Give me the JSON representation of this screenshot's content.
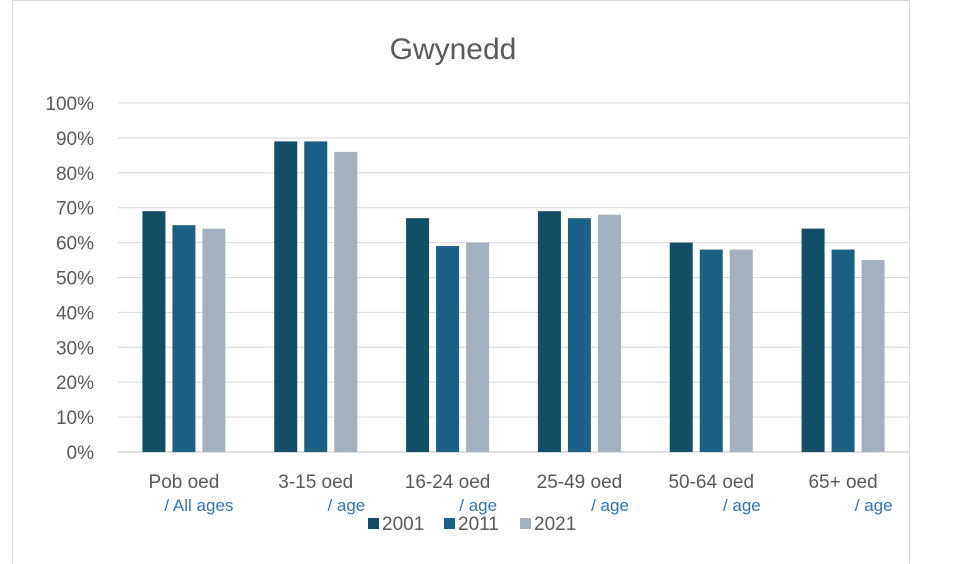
{
  "chart_data": {
    "type": "bar",
    "title": "Gwynedd",
    "xlabel": "",
    "ylabel": "",
    "ylim": [
      0,
      100
    ],
    "y_ticks": [
      "0%",
      "10%",
      "20%",
      "30%",
      "40%",
      "50%",
      "60%",
      "70%",
      "80%",
      "90%",
      "100%"
    ],
    "categories": [
      {
        "main": "Pob oed",
        "sub": "/ All ages"
      },
      {
        "main": "3-15 oed",
        "sub": "/ age"
      },
      {
        "main": "16-24 oed",
        "sub": "/ age"
      },
      {
        "main": "25-49 oed",
        "sub": "/ age"
      },
      {
        "main": "50-64 oed",
        "sub": "/ age"
      },
      {
        "main": "65+ oed",
        "sub": "/ age"
      }
    ],
    "series": [
      {
        "name": "2001",
        "color": "#124e66",
        "values": [
          69,
          89,
          67,
          69,
          60,
          64
        ]
      },
      {
        "name": "2011",
        "color": "#1b6186",
        "values": [
          65,
          89,
          59,
          67,
          58,
          58
        ]
      },
      {
        "name": "2021",
        "color": "#a3b0bd",
        "values": [
          64,
          86,
          60,
          68,
          58,
          55
        ]
      }
    ],
    "grid": true,
    "legend": "bottom"
  }
}
